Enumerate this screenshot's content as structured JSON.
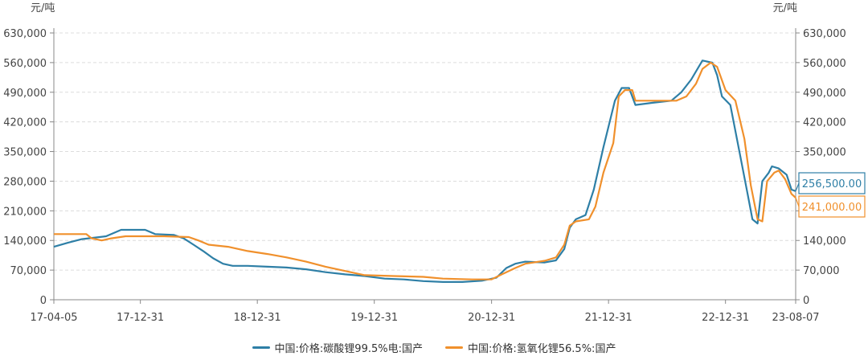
{
  "chart_data": {
    "type": "line",
    "unit_left": "元/吨",
    "unit_right": "元/吨",
    "ylim": [
      0,
      630000
    ],
    "yticks": [
      0,
      70000,
      140000,
      210000,
      280000,
      350000,
      420000,
      490000,
      560000,
      630000
    ],
    "ytick_labels": [
      "0",
      "70,000",
      "140,000",
      "210,000",
      "280,000",
      "350,000",
      "420,000",
      "490,000",
      "560,000",
      "630,000"
    ],
    "xlim": [
      "2017-04-05",
      "2023-08-07"
    ],
    "xticks": [
      "2017-04-05",
      "2017-12-31",
      "2018-12-31",
      "2019-12-31",
      "2020-12-31",
      "2021-12-31",
      "2022-12-31",
      "2023-08-07"
    ],
    "xtick_labels": [
      "17-04-05",
      "17-12-31",
      "18-12-31",
      "19-12-31",
      "20-12-31",
      "21-12-31",
      "22-12-31",
      "23-08-07"
    ],
    "grid": true,
    "legend_position": "bottom",
    "series": [
      {
        "name": "中国:价格:碳酸锂99.5%电:国产",
        "color": "#2e7fa6",
        "last_label": "256,500.00",
        "points": [
          [
            "2017-04-05",
            125000
          ],
          [
            "2017-05-20",
            135000
          ],
          [
            "2017-07-01",
            143000
          ],
          [
            "2017-09-15",
            150000
          ],
          [
            "2017-11-01",
            165000
          ],
          [
            "2018-01-15",
            165000
          ],
          [
            "2018-02-15",
            155000
          ],
          [
            "2018-04-15",
            153000
          ],
          [
            "2018-05-15",
            145000
          ],
          [
            "2018-06-15",
            130000
          ],
          [
            "2018-07-15",
            115000
          ],
          [
            "2018-08-15",
            98000
          ],
          [
            "2018-09-15",
            85000
          ],
          [
            "2018-10-15",
            80000
          ],
          [
            "2018-12-01",
            80000
          ],
          [
            "2019-02-01",
            78000
          ],
          [
            "2019-04-01",
            76000
          ],
          [
            "2019-06-01",
            72000
          ],
          [
            "2019-08-01",
            65000
          ],
          [
            "2019-10-01",
            60000
          ],
          [
            "2019-12-01",
            56000
          ],
          [
            "2020-02-01",
            50000
          ],
          [
            "2020-04-01",
            48000
          ],
          [
            "2020-06-01",
            44000
          ],
          [
            "2020-08-01",
            42000
          ],
          [
            "2020-10-01",
            42000
          ],
          [
            "2020-12-01",
            45000
          ],
          [
            "2021-01-15",
            52000
          ],
          [
            "2021-02-15",
            75000
          ],
          [
            "2021-03-15",
            85000
          ],
          [
            "2021-04-15",
            90000
          ],
          [
            "2021-06-15",
            88000
          ],
          [
            "2021-07-20",
            93000
          ],
          [
            "2021-08-15",
            120000
          ],
          [
            "2021-09-01",
            170000
          ],
          [
            "2021-09-20",
            190000
          ],
          [
            "2021-10-20",
            200000
          ],
          [
            "2021-11-15",
            260000
          ],
          [
            "2021-12-15",
            360000
          ],
          [
            "2022-01-20",
            470000
          ],
          [
            "2022-02-10",
            500000
          ],
          [
            "2022-03-05",
            500000
          ],
          [
            "2022-03-25",
            460000
          ],
          [
            "2022-05-15",
            465000
          ],
          [
            "2022-07-15",
            470000
          ],
          [
            "2022-08-15",
            490000
          ],
          [
            "2022-09-15",
            520000
          ],
          [
            "2022-10-20",
            565000
          ],
          [
            "2022-11-20",
            560000
          ],
          [
            "2022-12-05",
            530000
          ],
          [
            "2022-12-20",
            480000
          ],
          [
            "2023-01-15",
            460000
          ],
          [
            "2023-02-15",
            340000
          ],
          [
            "2023-03-10",
            250000
          ],
          [
            "2023-03-25",
            190000
          ],
          [
            "2023-04-10",
            180000
          ],
          [
            "2023-04-25",
            280000
          ],
          [
            "2023-05-15",
            300000
          ],
          [
            "2023-05-25",
            315000
          ],
          [
            "2023-06-15",
            310000
          ],
          [
            "2023-07-10",
            295000
          ],
          [
            "2023-07-25",
            260000
          ],
          [
            "2023-08-07",
            256500
          ]
        ]
      },
      {
        "name": "中国:价格:氢氧化锂56.5%:国产",
        "color": "#f0902c",
        "last_label": "241,000.00",
        "points": [
          [
            "2017-04-05",
            155000
          ],
          [
            "2017-07-15",
            155000
          ],
          [
            "2017-08-01",
            145000
          ],
          [
            "2017-09-01",
            140000
          ],
          [
            "2017-10-01",
            145000
          ],
          [
            "2017-11-15",
            150000
          ],
          [
            "2018-03-15",
            150000
          ],
          [
            "2018-05-31",
            148000
          ],
          [
            "2018-06-30",
            140000
          ],
          [
            "2018-08-01",
            130000
          ],
          [
            "2018-10-01",
            125000
          ],
          [
            "2018-12-01",
            115000
          ],
          [
            "2019-02-01",
            108000
          ],
          [
            "2019-04-01",
            100000
          ],
          [
            "2019-06-01",
            90000
          ],
          [
            "2019-08-01",
            78000
          ],
          [
            "2019-10-01",
            68000
          ],
          [
            "2019-12-01",
            58000
          ],
          [
            "2020-03-01",
            56000
          ],
          [
            "2020-06-01",
            54000
          ],
          [
            "2020-08-01",
            50000
          ],
          [
            "2020-10-31",
            48000
          ],
          [
            "2020-12-31",
            48000
          ],
          [
            "2021-02-01",
            60000
          ],
          [
            "2021-03-15",
            75000
          ],
          [
            "2021-04-15",
            85000
          ],
          [
            "2021-06-15",
            92000
          ],
          [
            "2021-07-20",
            100000
          ],
          [
            "2021-08-15",
            130000
          ],
          [
            "2021-09-01",
            175000
          ],
          [
            "2021-09-20",
            185000
          ],
          [
            "2021-10-31",
            190000
          ],
          [
            "2021-11-20",
            220000
          ],
          [
            "2021-12-15",
            300000
          ],
          [
            "2022-01-15",
            370000
          ],
          [
            "2022-02-01",
            480000
          ],
          [
            "2022-02-20",
            495000
          ],
          [
            "2022-03-15",
            495000
          ],
          [
            "2022-03-25",
            470000
          ],
          [
            "2022-05-31",
            470000
          ],
          [
            "2022-07-31",
            470000
          ],
          [
            "2022-08-31",
            480000
          ],
          [
            "2022-09-30",
            510000
          ],
          [
            "2022-10-20",
            545000
          ],
          [
            "2022-11-15",
            560000
          ],
          [
            "2022-12-05",
            550000
          ],
          [
            "2022-12-31",
            495000
          ],
          [
            "2023-01-31",
            470000
          ],
          [
            "2023-02-28",
            380000
          ],
          [
            "2023-03-20",
            270000
          ],
          [
            "2023-04-10",
            190000
          ],
          [
            "2023-04-25",
            185000
          ],
          [
            "2023-05-10",
            280000
          ],
          [
            "2023-06-01",
            300000
          ],
          [
            "2023-06-15",
            305000
          ],
          [
            "2023-07-05",
            285000
          ],
          [
            "2023-07-25",
            250000
          ],
          [
            "2023-08-07",
            241000
          ]
        ]
      }
    ]
  }
}
